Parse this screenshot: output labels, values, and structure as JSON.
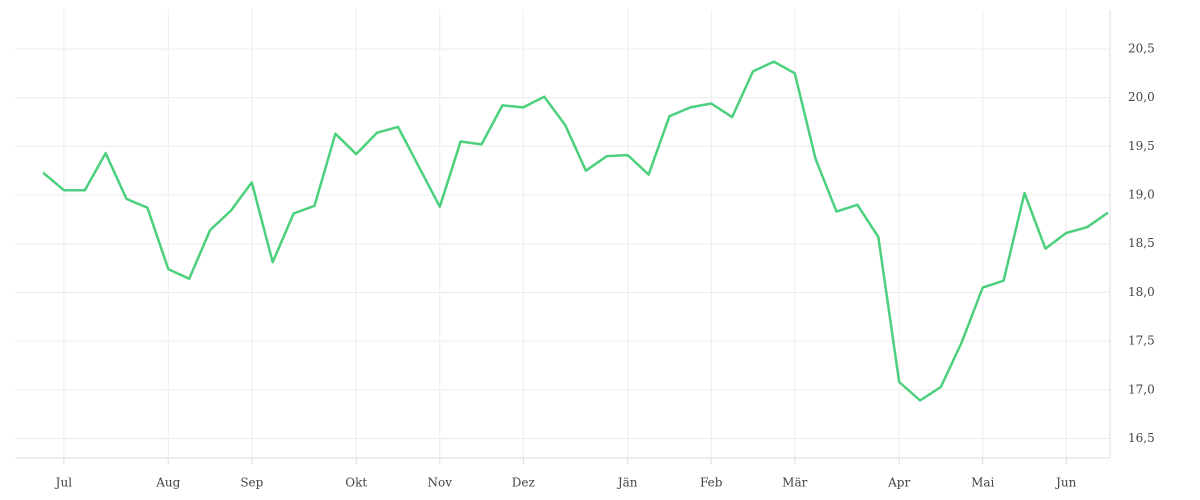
{
  "chart_data": {
    "type": "line",
    "categories": [
      null,
      "Jul",
      null,
      null,
      null,
      null,
      "Aug",
      null,
      null,
      null,
      "Sep",
      null,
      null,
      null,
      null,
      "Okt",
      null,
      null,
      null,
      "Nov",
      null,
      null,
      null,
      "Dez",
      null,
      null,
      null,
      null,
      "Jän",
      null,
      null,
      null,
      "Feb",
      null,
      null,
      null,
      "Mär",
      null,
      null,
      null,
      null,
      "Apr",
      null,
      null,
      null,
      "Mai",
      null,
      null,
      null,
      "Jun",
      null,
      null
    ],
    "series": [
      {
        "color": "#4cd07d",
        "values": [
          19.23,
          19.05,
          19.05,
          19.43,
          18.96,
          18.87,
          18.24,
          18.14,
          18.64,
          18.84,
          19.13,
          18.31,
          18.81,
          18.89,
          19.63,
          19.42,
          19.64,
          19.7,
          19.29,
          18.88,
          19.55,
          19.52,
          19.92,
          19.9,
          20.01,
          19.72,
          19.25,
          19.4,
          19.41,
          19.21,
          19.81,
          19.9,
          19.94,
          19.8,
          20.27,
          20.37,
          20.25,
          19.37,
          18.83,
          18.9,
          18.57,
          17.08,
          16.89,
          17.03,
          17.49,
          18.05,
          18.12,
          19.02,
          18.45,
          18.61,
          18.67,
          18.82
        ]
      }
    ],
    "ylim": [
      16.3,
      20.9
    ],
    "yticks": [
      {
        "value": 16.5,
        "label": "16,5"
      },
      {
        "value": 17,
        "label": "17,0"
      },
      {
        "value": 17.5,
        "label": "17,5"
      },
      {
        "value": 18,
        "label": "18,0"
      },
      {
        "value": 18.5,
        "label": "18,5"
      },
      {
        "value": 19,
        "label": "19,0"
      },
      {
        "value": 19.5,
        "label": "19,5"
      },
      {
        "value": 20,
        "label": "20,0"
      },
      {
        "value": 20.5,
        "label": "20,5"
      }
    ],
    "grid": true
  }
}
